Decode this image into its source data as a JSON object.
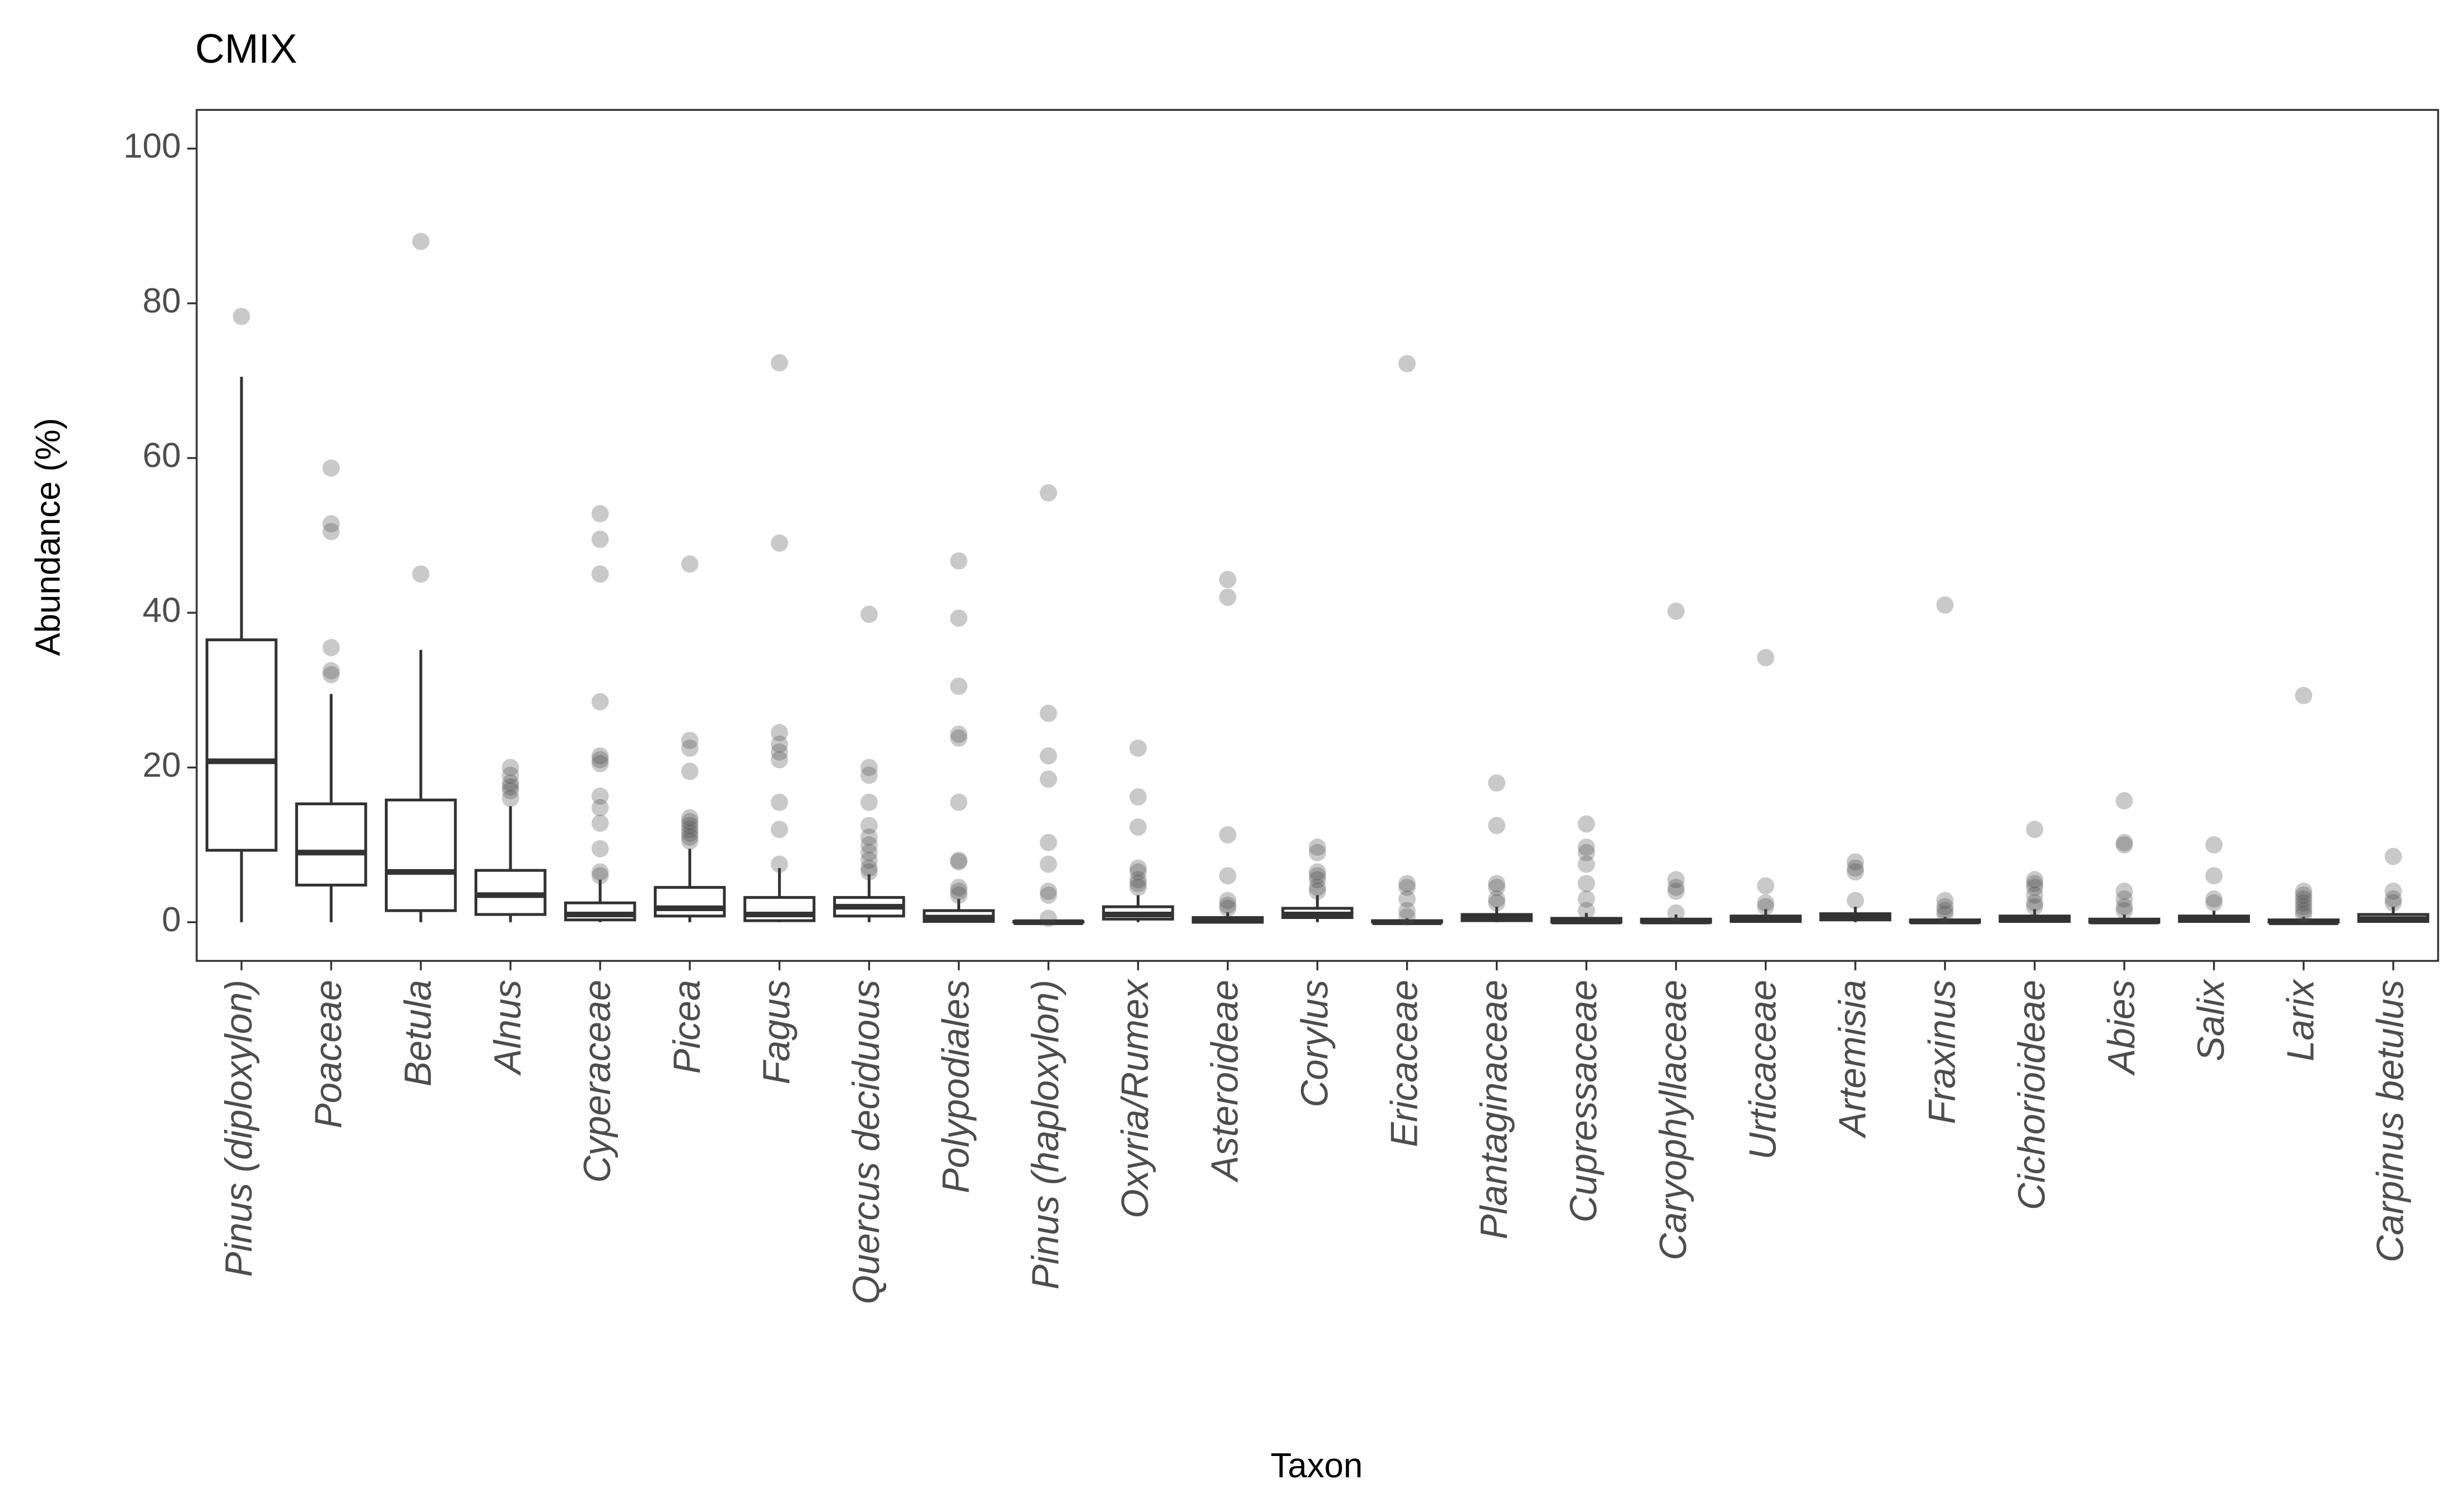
{
  "chart_data": {
    "type": "box",
    "title": "CMIX",
    "x_label": "Taxon",
    "y_label": "Abundance (%)",
    "ylim": [
      -5,
      105
    ],
    "yticks": [
      0,
      20,
      40,
      60,
      80,
      100
    ],
    "color": "#333333",
    "outlier_color": "#4d4d4d",
    "categories": [
      "Pinus (diploxylon)",
      "Poaceae",
      "Betula",
      "Alnus",
      "Cyperaceae",
      "Picea",
      "Fagus",
      "Quercus deciduous",
      "Polypodiales",
      "Pinus (haploxylon)",
      "Oxyria/Rumex",
      "Asteroideae",
      "Corylus",
      "Ericaceae",
      "Plantaginaceae",
      "Cupressaceae",
      "Caryophyllaceae",
      "Urticaceae",
      "Artemisia",
      "Fraxinus",
      "Cichorioideae",
      "Abies",
      "Salix",
      "Larix",
      "Carpinus betulus"
    ],
    "boxes": [
      {
        "whisker_low": 0,
        "q1": 9.3,
        "median": 20.8,
        "q3": 36.5,
        "whisker_high": 70.5,
        "outliers": [
          78.3
        ]
      },
      {
        "whisker_low": 0,
        "q1": 4.8,
        "median": 9,
        "q3": 15.3,
        "whisker_high": 29.5,
        "outliers": [
          32,
          32.5,
          35.5,
          50.5,
          51.5,
          58.7
        ]
      },
      {
        "whisker_low": 0,
        "q1": 1.5,
        "median": 6.5,
        "q3": 15.8,
        "whisker_high": 35.2,
        "outliers": [
          45,
          88
        ]
      },
      {
        "whisker_low": 0,
        "q1": 1,
        "median": 3.5,
        "q3": 6.7,
        "whisker_high": 15,
        "outliers": [
          16,
          17,
          17.5,
          18,
          19,
          20
        ]
      },
      {
        "whisker_low": 0,
        "q1": 0.3,
        "median": 1,
        "q3": 2.5,
        "whisker_high": 5.5,
        "outliers": [
          6,
          6.5,
          9.5,
          12.8,
          14.8,
          16.3,
          20.5,
          21,
          21.5,
          28.5,
          45,
          49.5,
          52.8
        ]
      },
      {
        "whisker_low": 0,
        "q1": 0.8,
        "median": 1.8,
        "q3": 4.5,
        "whisker_high": 9.5,
        "outliers": [
          10.5,
          11,
          11.5,
          12,
          12.5,
          13,
          13.5,
          19.5,
          22.5,
          23.5,
          46.3
        ]
      },
      {
        "whisker_low": 0,
        "q1": 0.2,
        "median": 1,
        "q3": 3.2,
        "whisker_high": 7,
        "outliers": [
          7.5,
          12,
          15.5,
          21,
          22,
          23,
          24.5,
          49,
          72.3
        ]
      },
      {
        "whisker_low": 0,
        "q1": 0.8,
        "median": 2,
        "q3": 3.2,
        "whisker_high": 6.2,
        "outliers": [
          6.5,
          7,
          8,
          9,
          10,
          11,
          12.5,
          15.5,
          19,
          20,
          39.8
        ]
      },
      {
        "whisker_low": 0,
        "q1": 0.1,
        "median": 0.6,
        "q3": 1.5,
        "whisker_high": 3,
        "outliers": [
          3.5,
          4,
          4.5,
          7.8,
          8,
          15.5,
          23.8,
          24.3,
          30.5,
          39.3,
          46.7
        ]
      },
      {
        "whisker_low": 0,
        "q1": 0,
        "median": 0,
        "q3": 0.1,
        "whisker_high": 0.3,
        "outliers": [
          0.5,
          3.5,
          4,
          7.5,
          10.3,
          18.5,
          21.5,
          27,
          55.5
        ]
      },
      {
        "whisker_low": 0,
        "q1": 0.4,
        "median": 1,
        "q3": 2,
        "whisker_high": 3.5,
        "outliers": [
          4.5,
          5,
          5.5,
          6.5,
          7,
          12.3,
          16.2,
          22.5
        ]
      },
      {
        "whisker_low": 0,
        "q1": 0,
        "median": 0.2,
        "q3": 0.6,
        "whisker_high": 1.3,
        "outliers": [
          1.8,
          2.2,
          2.8,
          6,
          11.3,
          42,
          44.3
        ]
      },
      {
        "whisker_low": 0,
        "q1": 0.6,
        "median": 1,
        "q3": 1.8,
        "whisker_high": 3.5,
        "outliers": [
          4,
          4.5,
          5.5,
          6,
          6.5,
          9,
          9.7
        ]
      },
      {
        "whisker_low": 0,
        "q1": 0,
        "median": 0,
        "q3": 0.2,
        "whisker_high": 0.5,
        "outliers": [
          0.7,
          1.5,
          3,
          4.5,
          5,
          72.2
        ]
      },
      {
        "whisker_low": 0,
        "q1": 0.2,
        "median": 0.5,
        "q3": 1,
        "whisker_high": 2,
        "outliers": [
          2.5,
          3,
          4.5,
          5,
          12.5,
          18
        ]
      },
      {
        "whisker_low": 0,
        "q1": 0,
        "median": 0.1,
        "q3": 0.5,
        "whisker_high": 1.2,
        "outliers": [
          1.5,
          3,
          5,
          7.5,
          9,
          9.7,
          12.7
        ]
      },
      {
        "whisker_low": 0,
        "q1": 0,
        "median": 0.1,
        "q3": 0.4,
        "whisker_high": 1,
        "outliers": [
          1.2,
          4,
          4.5,
          5.5,
          40.2
        ]
      },
      {
        "whisker_low": 0,
        "q1": 0.1,
        "median": 0.3,
        "q3": 0.8,
        "whisker_high": 1.7,
        "outliers": [
          2,
          2.5,
          4.7,
          34.2
        ]
      },
      {
        "whisker_low": 0,
        "q1": 0.3,
        "median": 0.6,
        "q3": 1.1,
        "whisker_high": 2,
        "outliers": [
          2.8,
          6.5,
          7,
          7.8
        ]
      },
      {
        "whisker_low": 0,
        "q1": 0,
        "median": 0.1,
        "q3": 0.3,
        "whisker_high": 0.7,
        "outliers": [
          1,
          1.5,
          2,
          2.8,
          41
        ]
      },
      {
        "whisker_low": 0,
        "q1": 0.1,
        "median": 0.3,
        "q3": 0.8,
        "whisker_high": 1.7,
        "outliers": [
          2,
          2.5,
          3.5,
          4.5,
          5,
          5.5,
          12
        ]
      },
      {
        "whisker_low": 0,
        "q1": 0,
        "median": 0.1,
        "q3": 0.4,
        "whisker_high": 1,
        "outliers": [
          1.5,
          2,
          3,
          4,
          10,
          10.3,
          15.7
        ]
      },
      {
        "whisker_low": 0,
        "q1": 0.1,
        "median": 0.4,
        "q3": 0.8,
        "whisker_high": 1.5,
        "outliers": [
          2.5,
          3,
          6,
          10
        ]
      },
      {
        "whisker_low": 0,
        "q1": 0,
        "median": 0,
        "q3": 0.3,
        "whisker_high": 0.7,
        "outliers": [
          1,
          1.5,
          2,
          2.5,
          3,
          3.5,
          4,
          29.3
        ]
      },
      {
        "whisker_low": 0,
        "q1": 0.1,
        "median": 0.4,
        "q3": 1,
        "whisker_high": 2,
        "outliers": [
          2.5,
          3,
          4,
          8.5
        ]
      }
    ]
  }
}
